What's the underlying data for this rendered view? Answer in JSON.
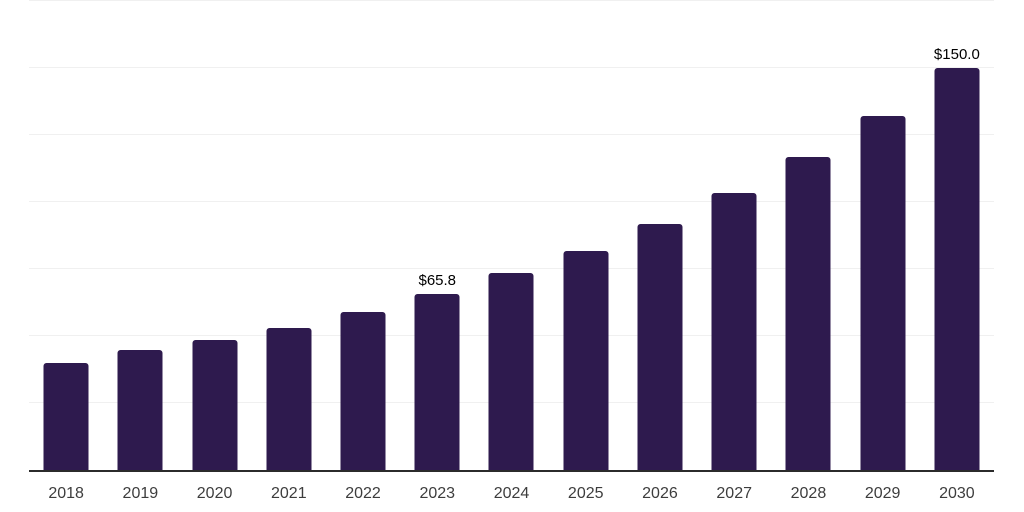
{
  "chart": {
    "background_color": "#ffffff",
    "bar_color": "#2e1a4e",
    "axis_line_color": "#2b2b2b",
    "gridline_color": "#f0f0f0",
    "tick_label_color": "#3d3d3d",
    "value_label_color": "#000000"
  },
  "chart_data": {
    "type": "bar",
    "title": "",
    "xlabel": "",
    "ylabel": "",
    "categories": [
      "2018",
      "2019",
      "2020",
      "2021",
      "2022",
      "2023",
      "2024",
      "2025",
      "2026",
      "2027",
      "2028",
      "2029",
      "2030"
    ],
    "values": [
      39.9,
      44.8,
      48.5,
      53.0,
      59.0,
      65.8,
      73.5,
      81.7,
      91.8,
      103.4,
      116.8,
      132.1,
      150.0
    ],
    "point_labels": [
      null,
      null,
      null,
      null,
      null,
      "$65.8",
      null,
      null,
      null,
      null,
      null,
      null,
      "$150.0"
    ],
    "ylim": [
      0,
      175.4
    ],
    "gridline_values": [
      25,
      50,
      75,
      100,
      125,
      150,
      175
    ],
    "grid": "horizontal",
    "legend": "none",
    "y_axis_tick_labels": "none"
  }
}
